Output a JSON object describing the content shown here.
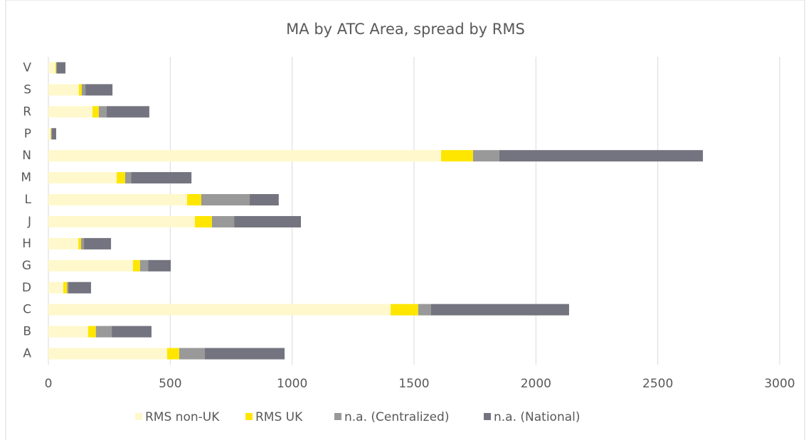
{
  "chart_data": {
    "type": "stacked_barh",
    "title": "MA by ATC Area, spread by RMS",
    "categories": [
      "A",
      "B",
      "C",
      "D",
      "G",
      "H",
      "J",
      "L",
      "M",
      "N",
      "P",
      "R",
      "S",
      "V"
    ],
    "series": [
      {
        "name": "RMS non-UK",
        "color": "#fff8cc",
        "values": [
          487,
          163,
          1404,
          61,
          347,
          123,
          601,
          569,
          280,
          1611,
          9,
          181,
          125,
          29
        ]
      },
      {
        "name": "RMS UK",
        "color": "#ffe600",
        "values": [
          50,
          32,
          113,
          16,
          29,
          11,
          70,
          58,
          35,
          131,
          2,
          26,
          12,
          3
        ]
      },
      {
        "name": "n.a. (Centralized)",
        "color": "#999999",
        "values": [
          105,
          65,
          53,
          5,
          33,
          12,
          91,
          199,
          24,
          108,
          3,
          32,
          15,
          3
        ]
      },
      {
        "name": "n.a. (National)",
        "color": "#747480",
        "values": [
          327,
          163,
          566,
          93,
          93,
          111,
          274,
          119,
          248,
          835,
          18,
          175,
          111,
          35
        ]
      }
    ],
    "xlim": [
      0,
      3000
    ],
    "xticks": [
      0,
      500,
      1000,
      1500,
      2000,
      2500,
      3000
    ],
    "grid": true
  }
}
